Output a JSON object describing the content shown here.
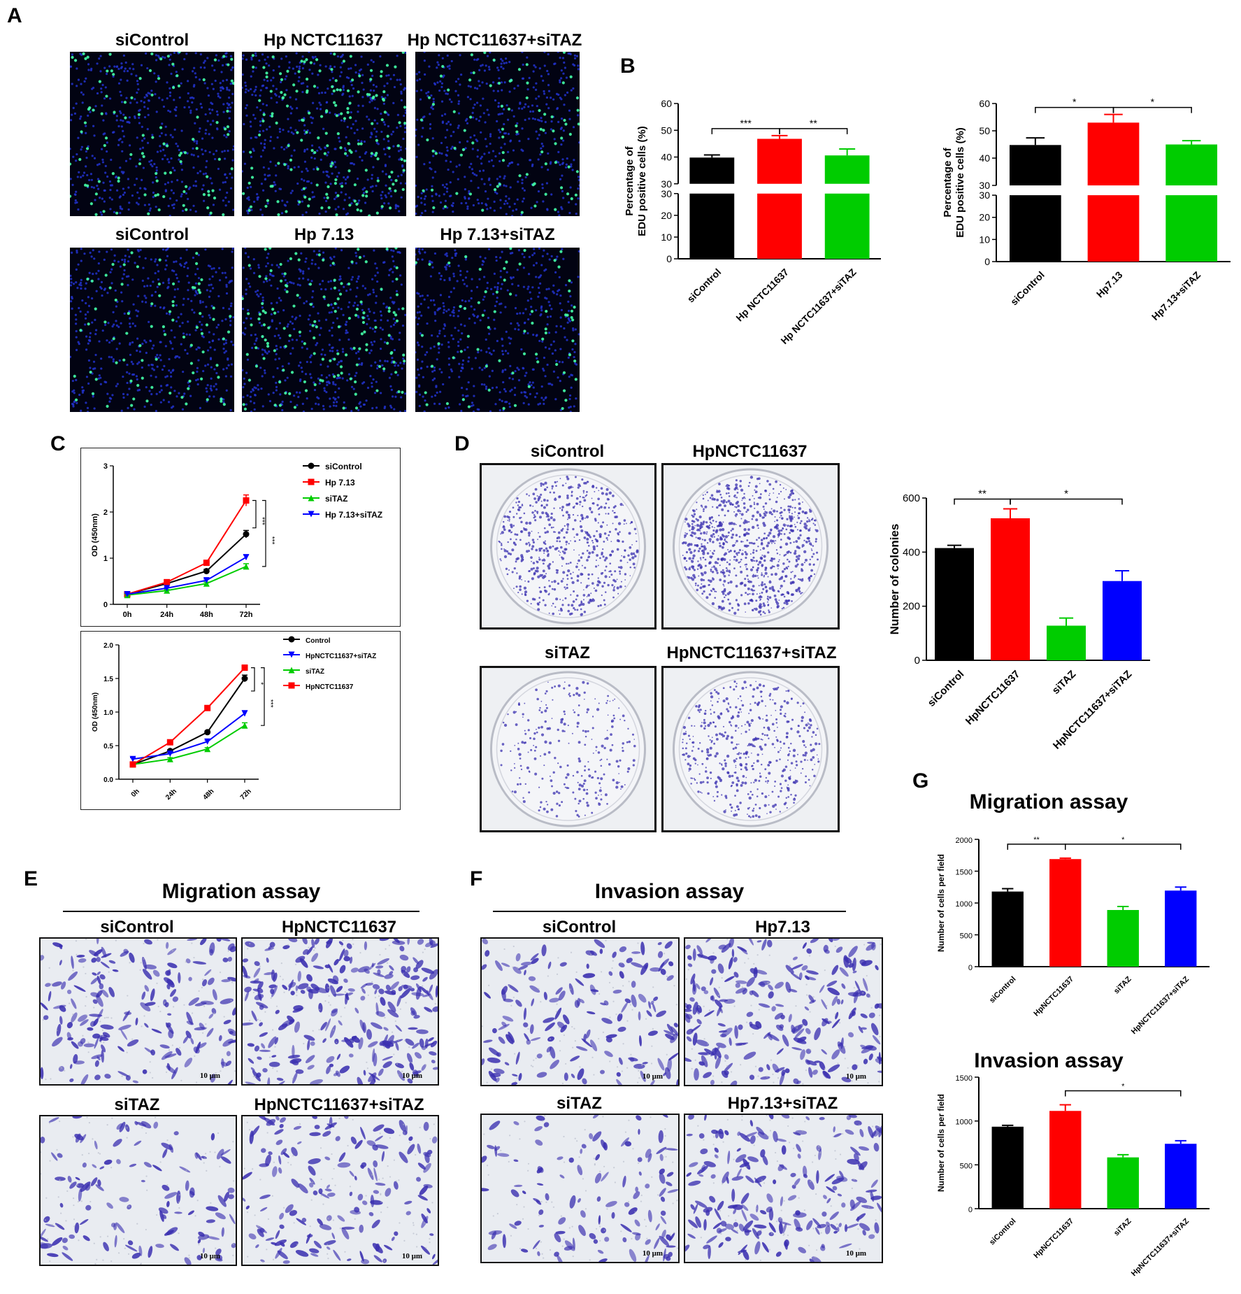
{
  "panel_labels": {
    "A": "A",
    "B": "B",
    "C": "C",
    "D": "D",
    "E": "E",
    "F": "F",
    "G": "G"
  },
  "panel_a": {
    "titles": [
      "siControl",
      "Hp NCTC11637",
      "Hp NCTC11637+siTAZ",
      "siControl",
      "Hp 7.13",
      "Hp 7.13+siTAZ"
    ],
    "density": [
      0.45,
      0.75,
      0.35,
      0.35,
      0.6,
      0.3
    ]
  },
  "panel_d": {
    "titles": [
      "siControl",
      "HpNCTC11637",
      "siTAZ",
      "HpNCTC11637+siTAZ"
    ],
    "density": [
      0.7,
      1.0,
      0.3,
      0.55
    ]
  },
  "panel_e": {
    "heading": "Migration assay",
    "titles": [
      "siControl",
      "HpNCTC11637",
      "siTAZ",
      "HpNCTC11637+siTAZ"
    ],
    "scales": [
      "10 μm",
      "10 μm",
      "10 μm",
      "10 μm"
    ],
    "density": [
      0.7,
      1.0,
      0.45,
      0.6
    ]
  },
  "panel_f": {
    "heading": "Invasion assay",
    "titles": [
      "siControl",
      "Hp7.13",
      "siTAZ",
      "Hp7.13+siTAZ"
    ],
    "scales": [
      "10 μm",
      "10 μm",
      "10 μm",
      "10 μm"
    ],
    "density": [
      0.6,
      0.9,
      0.45,
      0.75
    ]
  },
  "colors": {
    "black": "#000000",
    "red": "#ff0000",
    "green": "#00cc00",
    "blue": "#0000ff",
    "nuclei": "#2233cc",
    "edu": "#44ffaa",
    "stain": "#3a2fb0"
  },
  "chart_data": [
    {
      "id": "B1",
      "type": "bar",
      "ylabel": [
        "Percentage of",
        "EDU positive cells  (%)"
      ],
      "categories": [
        "siControl",
        "Hp NCTC11637",
        "Hp NCTC11637+siTAZ"
      ],
      "values": [
        39.8,
        46.8,
        40.6
      ],
      "errors": [
        1.0,
        1.2,
        2.4
      ],
      "colors": [
        "#000000",
        "#ff0000",
        "#00cc00"
      ],
      "ylim": [
        0,
        60
      ],
      "axis_break": [
        30,
        30
      ],
      "yticks_low": [
        "0",
        "10",
        "20",
        "30"
      ],
      "yticks_high": [
        "30",
        "40",
        "50",
        "60"
      ],
      "sig": [
        {
          "from": 0,
          "to": 1,
          "label": "***"
        },
        {
          "from": 1,
          "to": 2,
          "label": "**"
        }
      ]
    },
    {
      "id": "B2",
      "type": "bar",
      "ylabel": [
        "Percentage of",
        "EDU positive cells  (%)"
      ],
      "categories": [
        "siControl",
        "Hp7.13",
        "Hp7.13+siTAZ"
      ],
      "values": [
        44.8,
        53.0,
        45.0
      ],
      "errors": [
        2.6,
        3.0,
        1.4
      ],
      "colors": [
        "#000000",
        "#ff0000",
        "#00cc00"
      ],
      "ylim": [
        0,
        60
      ],
      "axis_break": [
        30,
        30
      ],
      "yticks_low": [
        "0",
        "10",
        "20",
        "30"
      ],
      "yticks_high": [
        "30",
        "40",
        "50",
        "60"
      ],
      "sig": [
        {
          "from": 0,
          "to": 1,
          "label": "*"
        },
        {
          "from": 1,
          "to": 2,
          "label": "*"
        }
      ]
    },
    {
      "id": "C1",
      "type": "line",
      "ylabel": "OD (450nm)",
      "x": [
        "0h",
        "24h",
        "48h",
        "72h"
      ],
      "ylim": [
        0,
        3
      ],
      "yticks": [
        "0",
        "1",
        "2",
        "3"
      ],
      "series": [
        {
          "name": "siControl",
          "color": "#000000",
          "marker": "circle",
          "values": [
            0.22,
            0.45,
            0.72,
            1.52
          ],
          "err": [
            0.02,
            0.03,
            0.04,
            0.08
          ]
        },
        {
          "name": "Hp 7.13",
          "color": "#ff0000",
          "marker": "square",
          "values": [
            0.22,
            0.48,
            0.9,
            2.25
          ],
          "err": [
            0.02,
            0.03,
            0.04,
            0.12
          ]
        },
        {
          "name": "siTAZ",
          "color": "#00cc00",
          "marker": "triangle",
          "values": [
            0.2,
            0.3,
            0.45,
            0.82
          ],
          "err": [
            0.02,
            0.02,
            0.03,
            0.06
          ]
        },
        {
          "name": "Hp 7.13+siTAZ",
          "color": "#0000ff",
          "marker": "triangle-down",
          "values": [
            0.22,
            0.35,
            0.52,
            1.02
          ],
          "err": [
            0.02,
            0.02,
            0.03,
            0.05
          ]
        }
      ],
      "sig": [
        "***",
        "***"
      ]
    },
    {
      "id": "C2",
      "type": "line",
      "ylabel": "OD (450nm)",
      "x": [
        "0h",
        "24h",
        "48h",
        "72h"
      ],
      "ylim": [
        0,
        2.0
      ],
      "yticks": [
        "0.0",
        "0.5",
        "1.0",
        "1.5",
        "2.0"
      ],
      "series": [
        {
          "name": "Control",
          "color": "#000000",
          "marker": "circle",
          "values": [
            0.22,
            0.42,
            0.7,
            1.5
          ],
          "err": [
            0.02,
            0.02,
            0.02,
            0.05
          ]
        },
        {
          "name": "HpNCTC11637+siTAZ",
          "color": "#0000ff",
          "marker": "triangle-down",
          "values": [
            0.3,
            0.38,
            0.56,
            0.98
          ],
          "err": [
            0.02,
            0.02,
            0.02,
            0.04
          ]
        },
        {
          "name": "siTAZ",
          "color": "#00cc00",
          "marker": "triangle",
          "values": [
            0.22,
            0.3,
            0.45,
            0.8
          ],
          "err": [
            0.02,
            0.02,
            0.02,
            0.04
          ]
        },
        {
          "name": "HpNCTC11637",
          "color": "#ff0000",
          "marker": "square",
          "values": [
            0.22,
            0.55,
            1.06,
            1.66
          ],
          "err": [
            0.02,
            0.02,
            0.03,
            0.04
          ]
        }
      ],
      "sig": [
        "*",
        "***"
      ]
    },
    {
      "id": "D",
      "type": "bar",
      "ylabel": "Number of colonies",
      "categories": [
        "siControl",
        "HpNCTC11637",
        "siTAZ",
        "HpNCTC11637+siTAZ"
      ],
      "values": [
        415,
        525,
        128,
        293
      ],
      "errors": [
        10,
        35,
        28,
        38
      ],
      "colors": [
        "#000000",
        "#ff0000",
        "#00cc00",
        "#0000ff"
      ],
      "ylim": [
        0,
        600
      ],
      "yticks": [
        "0",
        "200",
        "400",
        "600"
      ],
      "sig": [
        {
          "from": 0,
          "to": 1,
          "label": "**"
        },
        {
          "from": 1,
          "to": 3,
          "label": "*"
        }
      ]
    },
    {
      "id": "G1",
      "type": "bar",
      "title": "Migration assay",
      "ylabel": "Number of cells per field",
      "categories": [
        "siControl",
        "HpNCTC11637",
        "siTAZ",
        "HpNCTC11637+siTAZ"
      ],
      "values": [
        1180,
        1690,
        890,
        1195
      ],
      "errors": [
        45,
        15,
        55,
        55
      ],
      "colors": [
        "#000000",
        "#ff0000",
        "#00cc00",
        "#0000ff"
      ],
      "ylim": [
        0,
        2000
      ],
      "yticks": [
        "0",
        "500",
        "1000",
        "1500",
        "2000"
      ],
      "sig": [
        {
          "from": 0,
          "to": 1,
          "label": "**"
        },
        {
          "from": 1,
          "to": 3,
          "label": "*"
        }
      ]
    },
    {
      "id": "G2",
      "type": "bar",
      "title": "Invasion assay",
      "ylabel": "Number of cells per field",
      "categories": [
        "siControl",
        "HpNCTC11637",
        "siTAZ",
        "HpNCTC11637+siTAZ"
      ],
      "values": [
        935,
        1115,
        585,
        740
      ],
      "errors": [
        15,
        70,
        30,
        35
      ],
      "colors": [
        "#000000",
        "#ff0000",
        "#00cc00",
        "#0000ff"
      ],
      "ylim": [
        0,
        1500
      ],
      "yticks": [
        "0",
        "500",
        "1000",
        "1500"
      ],
      "sig": [
        {
          "from": 1,
          "to": 3,
          "label": "*"
        }
      ]
    }
  ]
}
